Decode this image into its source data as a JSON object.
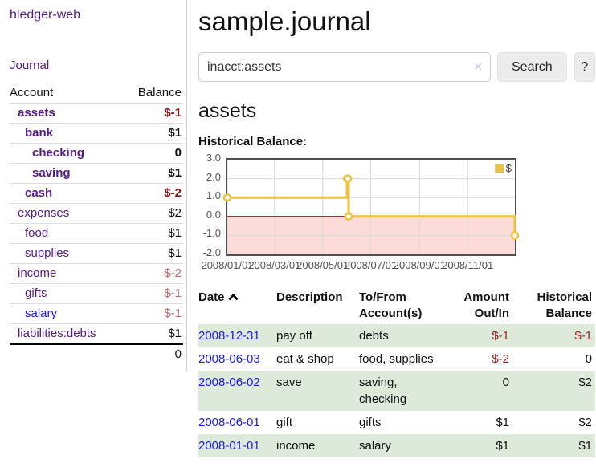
{
  "palette": {
    "link_purple": "#551a8b",
    "link_blue": "#1a1ae6",
    "negative_bold": "#8b1515",
    "negative_muted": "#b46a6a",
    "table_negative": "#9b2323",
    "row_stripe": "#dde9d9",
    "series_gold": "#edc240"
  },
  "sidebar": {
    "brand": "hledger-web",
    "nav_journal": "Journal",
    "accounts_table": {
      "headers": {
        "account": "Account",
        "balance": "Balance"
      },
      "rows": [
        {
          "name": "assets",
          "depth": 1,
          "bold": true,
          "balance": "$-1",
          "negative": true,
          "unvisited": false
        },
        {
          "name": "bank",
          "depth": 2,
          "bold": true,
          "balance": "$1",
          "negative": false,
          "unvisited": false
        },
        {
          "name": "checking",
          "depth": 3,
          "bold": true,
          "balance": "0",
          "negative": false,
          "unvisited": false
        },
        {
          "name": "saving",
          "depth": 3,
          "bold": true,
          "balance": "$1",
          "negative": false,
          "unvisited": false
        },
        {
          "name": "cash",
          "depth": 2,
          "bold": true,
          "balance": "$-2",
          "negative": true,
          "unvisited": false
        },
        {
          "name": "expenses",
          "depth": 1,
          "bold": false,
          "balance": "$2",
          "negative": false,
          "unvisited": false
        },
        {
          "name": "food",
          "depth": 2,
          "bold": false,
          "balance": "$1",
          "negative": false,
          "unvisited": false
        },
        {
          "name": "supplies",
          "depth": 2,
          "bold": false,
          "balance": "$1",
          "negative": false,
          "unvisited": false
        },
        {
          "name": "income",
          "depth": 1,
          "bold": false,
          "balance": "$-2",
          "negative": true,
          "unvisited": false
        },
        {
          "name": "gifts",
          "depth": 2,
          "bold": false,
          "balance": "$-1",
          "negative": true,
          "unvisited": false
        },
        {
          "name": "salary",
          "depth": 2,
          "bold": false,
          "balance": "$-1",
          "negative": true,
          "unvisited": true
        },
        {
          "name": "liabilities:debts",
          "depth": 1,
          "bold": false,
          "balance": "$1",
          "negative": false,
          "unvisited": false
        }
      ],
      "total": "0"
    }
  },
  "main": {
    "title": "sample.journal",
    "search": {
      "value": "inacct:assets",
      "clear_icon": "✕",
      "button": "Search",
      "help_button": "?"
    },
    "account_heading": "assets",
    "chart_label": "Historical Balance:"
  },
  "chart_data": {
    "type": "line",
    "step": true,
    "title": "Historical Balance",
    "series": [
      {
        "name": "$",
        "color": "#edc240",
        "points": [
          [
            "2008-01-01",
            1
          ],
          [
            "2008-06-01",
            2
          ],
          [
            "2008-06-02",
            2
          ],
          [
            "2008-06-03",
            0
          ],
          [
            "2008-12-31",
            -1
          ]
        ]
      }
    ],
    "xlim": [
      "2008-01-01",
      "2008-12-31"
    ],
    "ylim": [
      -2,
      3
    ],
    "x_ticks": [
      "2008/01/01",
      "2008/03/01",
      "2008/05/01",
      "2008/07/01",
      "2008/09/01",
      "2008/11/01"
    ],
    "y_ticks": [
      3.0,
      2.0,
      1.0,
      0.0,
      -1.0,
      -2.0
    ],
    "grid": true,
    "negative_region_color": "#fcdcd9",
    "zero_line_color": "#8b1a1a",
    "legend": {
      "label": "$",
      "position": "top-right"
    }
  },
  "transactions": {
    "headers": {
      "date": "Date",
      "description": "Description",
      "tofrom": "To/From Account(s)",
      "amount": "Amount Out/In",
      "historical": "Historical Balance"
    },
    "rows": [
      {
        "date": "2008-12-31",
        "description": "pay off",
        "accounts": "debts",
        "amount": "$-1",
        "amount_negative": true,
        "balance": "$-1",
        "balance_negative": true
      },
      {
        "date": "2008-06-03",
        "description": "eat & shop",
        "accounts": "food, supplies",
        "amount": "$-2",
        "amount_negative": true,
        "balance": "0",
        "balance_negative": false
      },
      {
        "date": "2008-06-02",
        "description": "save",
        "accounts": "saving, checking",
        "amount": "0",
        "amount_negative": false,
        "balance": "$2",
        "balance_negative": false
      },
      {
        "date": "2008-06-01",
        "description": "gift",
        "accounts": "gifts",
        "amount": "$1",
        "amount_negative": false,
        "balance": "$2",
        "balance_negative": false
      },
      {
        "date": "2008-01-01",
        "description": "income",
        "accounts": "salary",
        "amount": "$1",
        "amount_negative": false,
        "balance": "$1",
        "balance_negative": false
      }
    ]
  }
}
